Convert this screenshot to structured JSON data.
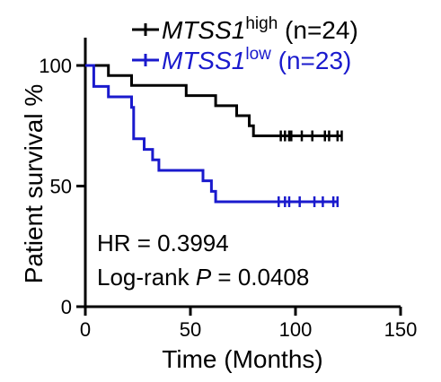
{
  "chart_data": {
    "type": "line",
    "subtype": "kaplan-meier",
    "xlabel": "Time (Months)",
    "ylabel": "Patient survival %",
    "xlim": [
      0,
      150
    ],
    "ylim": [
      0,
      100
    ],
    "xticks": [
      0,
      50,
      100,
      150
    ],
    "yticks": [
      0,
      50,
      100
    ],
    "grid": false,
    "legend_position": "top",
    "series": [
      {
        "name_main": "MTSS1",
        "name_sup": "high",
        "name_n": " (n=24)",
        "color": "#000000",
        "steps": [
          [
            0,
            100
          ],
          [
            11,
            100
          ],
          [
            11,
            95.8
          ],
          [
            22,
            95.8
          ],
          [
            22,
            91.7
          ],
          [
            48,
            91.7
          ],
          [
            48,
            87.5
          ],
          [
            62,
            87.5
          ],
          [
            62,
            83.3
          ],
          [
            72,
            83.3
          ],
          [
            72,
            79.2
          ],
          [
            78,
            79.2
          ],
          [
            78,
            75
          ],
          [
            80,
            75
          ],
          [
            80,
            70.8
          ],
          [
            122,
            70.8
          ]
        ],
        "censored": [
          93,
          95,
          97,
          98,
          103,
          108,
          114,
          116,
          120,
          122
        ]
      },
      {
        "name_main": "MTSS1",
        "name_sup": "low",
        "name_n": " (n=23)",
        "color": "#1a1acd",
        "steps": [
          [
            0,
            100
          ],
          [
            4,
            100
          ],
          [
            4,
            91.3
          ],
          [
            11,
            91.3
          ],
          [
            11,
            87
          ],
          [
            22,
            87
          ],
          [
            22,
            82.6
          ],
          [
            23,
            82.6
          ],
          [
            23,
            69.6
          ],
          [
            28,
            69.6
          ],
          [
            28,
            65.2
          ],
          [
            32,
            65.2
          ],
          [
            32,
            60.9
          ],
          [
            35,
            60.9
          ],
          [
            35,
            56.5
          ],
          [
            56,
            56.5
          ],
          [
            56,
            52.2
          ],
          [
            60,
            52.2
          ],
          [
            60,
            47.8
          ],
          [
            62,
            47.8
          ],
          [
            62,
            43.5
          ],
          [
            120,
            43.5
          ]
        ],
        "censored": [
          92,
          95,
          97,
          102,
          109,
          113,
          118,
          120
        ]
      }
    ],
    "annotations": {
      "hr": "HR = 0.3994",
      "logrank_prefix": "Log-rank ",
      "logrank_p": "P",
      "logrank_value": " = 0.0408"
    }
  }
}
